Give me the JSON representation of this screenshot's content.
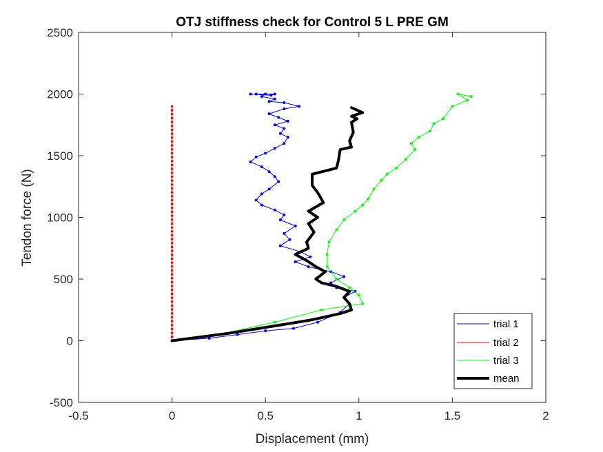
{
  "chart_data": {
    "type": "line",
    "title": "OTJ stiffness check for Control 5 L PRE GM",
    "xlabel": "Displacement (mm)",
    "ylabel": "Tendon force (N)",
    "xlim": [
      -0.5,
      2
    ],
    "ylim": [
      -500,
      2500
    ],
    "xticks": [
      -0.5,
      0,
      0.5,
      1,
      1.5,
      2
    ],
    "yticks": [
      -500,
      0,
      500,
      1000,
      1500,
      2000,
      2500
    ],
    "xtick_labels": [
      "-0.5",
      "0",
      "0.5",
      "1",
      "1.5",
      "2"
    ],
    "ytick_labels": [
      "-500",
      "0",
      "500",
      "1000",
      "1500",
      "2000",
      "2500"
    ],
    "grid": false,
    "legend_position": "bottom-right",
    "series": [
      {
        "name": "trial 1",
        "color": "#0000ff",
        "line_width": 1,
        "marker": "dot",
        "x": [
          0.0,
          0.2,
          0.35,
          0.5,
          0.65,
          0.78,
          0.9,
          0.95,
          0.92,
          0.98,
          0.88,
          0.85,
          0.92,
          0.85,
          0.73,
          0.66,
          0.74,
          0.69,
          0.58,
          0.63,
          0.6,
          0.66,
          0.58,
          0.6,
          0.55,
          0.48,
          0.45,
          0.48,
          0.52,
          0.57,
          0.55,
          0.52,
          0.48,
          0.42,
          0.45,
          0.5,
          0.55,
          0.6,
          0.62,
          0.58,
          0.6,
          0.55,
          0.62,
          0.57,
          0.52,
          0.6,
          0.68,
          0.6,
          0.52,
          0.55,
          0.48,
          0.5,
          0.45,
          0.55,
          0.53,
          0.42
        ],
        "y": [
          0,
          20,
          50,
          80,
          100,
          150,
          230,
          300,
          350,
          400,
          430,
          470,
          520,
          560,
          600,
          640,
          680,
          720,
          770,
          820,
          870,
          930,
          980,
          1020,
          1060,
          1100,
          1140,
          1190,
          1230,
          1290,
          1330,
          1370,
          1410,
          1450,
          1490,
          1520,
          1560,
          1600,
          1650,
          1680,
          1720,
          1750,
          1780,
          1810,
          1840,
          1880,
          1900,
          1930,
          1940,
          1960,
          1980,
          2000,
          2000,
          2000,
          1990,
          2000
        ]
      },
      {
        "name": "trial 2",
        "color": "#ff0000",
        "line_width": 1,
        "marker": "dot",
        "x": [
          0,
          0,
          0
        ],
        "y": [
          0,
          950,
          1900
        ]
      },
      {
        "name": "trial 3",
        "color": "#00ff00",
        "line_width": 1,
        "marker": "dot",
        "x": [
          0.0,
          0.25,
          0.55,
          0.8,
          1.02,
          1.0,
          0.95,
          0.88,
          0.83,
          0.83,
          0.84,
          0.88,
          0.92,
          0.98,
          1.02,
          1.05,
          1.08,
          1.12,
          1.15,
          1.2,
          1.25,
          1.3,
          1.28,
          1.32,
          1.38,
          1.4,
          1.45,
          1.5,
          1.58,
          1.53,
          1.6
        ],
        "y": [
          0,
          50,
          150,
          250,
          300,
          370,
          430,
          500,
          600,
          700,
          800,
          900,
          980,
          1050,
          1100,
          1150,
          1230,
          1300,
          1350,
          1400,
          1470,
          1550,
          1600,
          1650,
          1700,
          1760,
          1800,
          1900,
          1950,
          2000,
          1980
        ]
      },
      {
        "name": "mean",
        "color": "#000000",
        "line_width": 4,
        "marker": "none",
        "x": [
          0.0,
          0.3,
          0.55,
          0.75,
          0.9,
          0.96,
          0.95,
          0.92,
          0.95,
          0.88,
          0.8,
          0.77,
          0.82,
          0.77,
          0.72,
          0.66,
          0.73,
          0.72,
          0.76,
          0.73,
          0.78,
          0.73,
          0.81,
          0.78,
          0.75,
          0.75,
          0.88,
          0.89,
          0.9,
          0.96,
          0.95,
          0.97,
          0.96,
          0.99,
          0.96,
          1.02,
          0.96
        ],
        "y": [
          0,
          60,
          120,
          170,
          220,
          250,
          300,
          350,
          400,
          440,
          470,
          500,
          560,
          600,
          650,
          700,
          750,
          800,
          880,
          950,
          1000,
          1050,
          1120,
          1200,
          1260,
          1350,
          1400,
          1460,
          1550,
          1570,
          1620,
          1690,
          1770,
          1800,
          1820,
          1850,
          1890
        ]
      }
    ]
  }
}
